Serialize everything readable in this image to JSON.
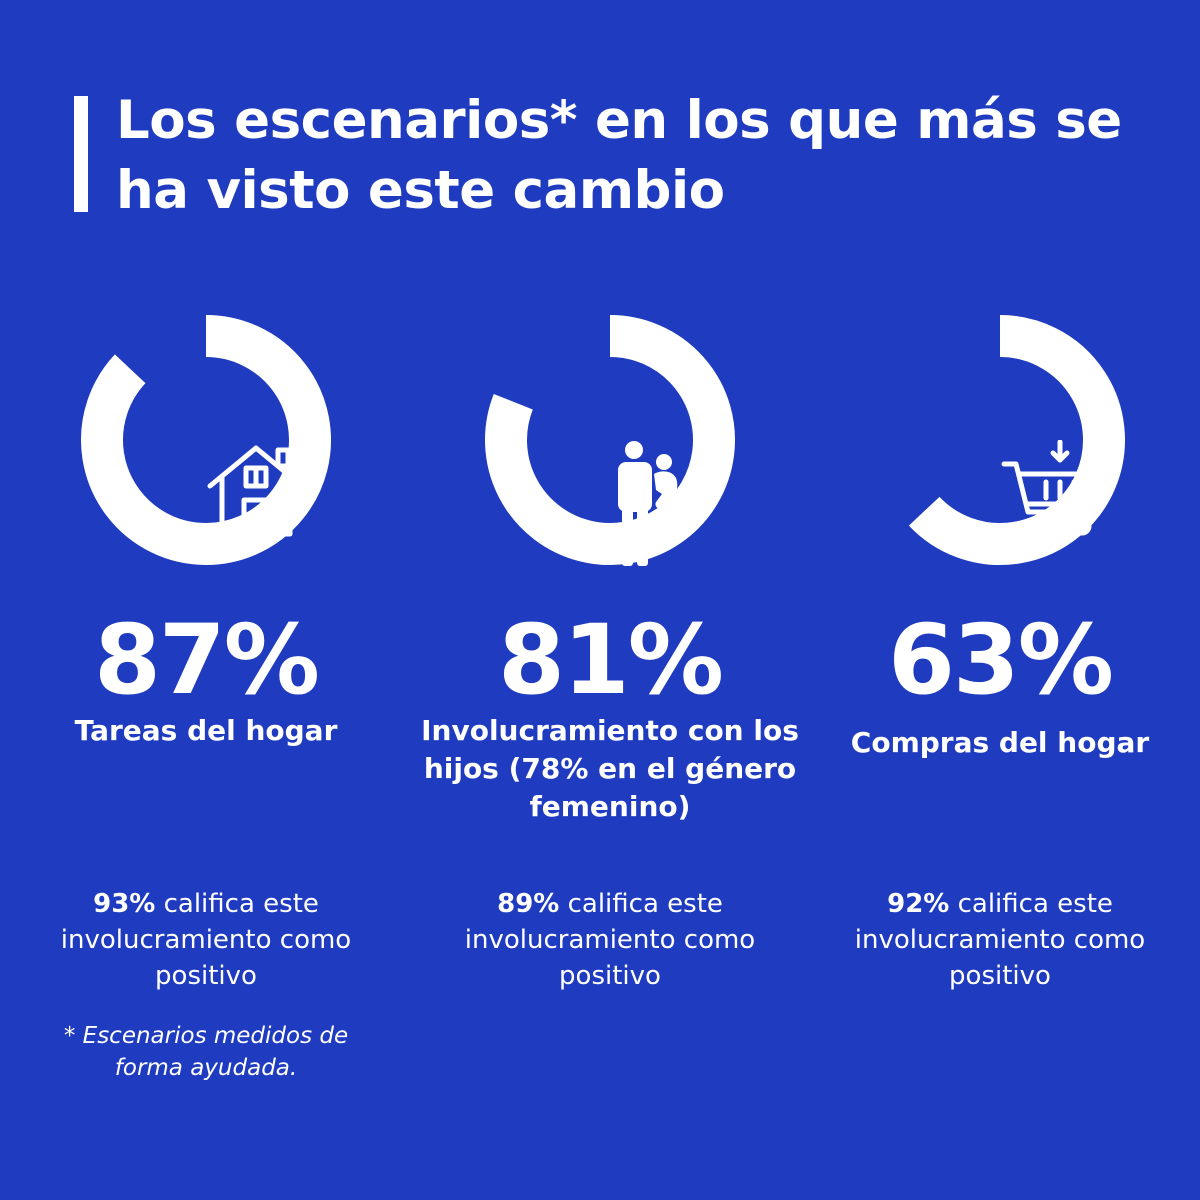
{
  "title": "Los escenarios* en los que más se ha visto este cambio",
  "colors": {
    "background": "#1f3bc0",
    "foreground": "#ffffff"
  },
  "items": [
    {
      "percent": "87%",
      "percent_value": 87,
      "icon": "house-icon",
      "label": "Tareas del hogar",
      "note_value": "93%",
      "note_text": " califica este involucramiento como positivo"
    },
    {
      "percent": "81%",
      "percent_value": 81,
      "icon": "parent-with-child-icon",
      "label": "Involucramiento con los hijos (78% en el género femenino)",
      "note_value": "89%",
      "note_text": " califica este involucramiento como positivo"
    },
    {
      "percent": "63%",
      "percent_value": 63,
      "icon": "shopping-cart-icon",
      "label": "Compras del hogar",
      "note_value": "92%",
      "note_text": " califica este involucramiento como positivo"
    }
  ],
  "footnote": "* Escenarios medidos de forma ayudada."
}
